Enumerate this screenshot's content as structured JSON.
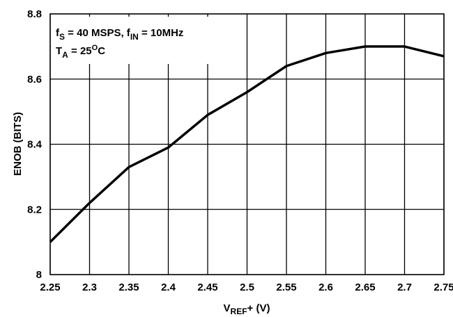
{
  "chart_data": {
    "type": "line",
    "title": "",
    "xlabel": {
      "main": "V",
      "sub": "REF",
      "suffix": "+ (V)"
    },
    "ylabel": "ENOB (BITS)",
    "xlim": [
      2.25,
      2.75
    ],
    "ylim": [
      8.0,
      8.8
    ],
    "grid": true,
    "x_ticks": [
      "2.25",
      "2.3",
      "2.35",
      "2.4",
      "2.45",
      "2.5",
      "2.55",
      "2.6",
      "2.65",
      "2.7",
      "2.75"
    ],
    "y_ticks": [
      "8",
      "8.2",
      "8.4",
      "8.6",
      "8.8"
    ],
    "annotations": {
      "line1": {
        "f1": "f",
        "f1_sub": "S",
        "f1_rest": " = 40 MSPS, f",
        "f2_sub": "IN",
        "f2_rest": " = 10MHz"
      },
      "line2": {
        "t": "T",
        "t_sub": "A",
        "t_rest": " = 25",
        "t_sup": "O",
        "t_unit": "C"
      }
    },
    "series": [
      {
        "x": [
          2.25,
          2.3,
          2.35,
          2.4,
          2.45,
          2.5,
          2.55,
          2.6,
          2.65,
          2.7,
          2.75
        ],
        "values": [
          8.1,
          8.22,
          8.33,
          8.39,
          8.49,
          8.56,
          8.64,
          8.68,
          8.7,
          8.7,
          8.67
        ],
        "color": "#000000"
      }
    ]
  }
}
